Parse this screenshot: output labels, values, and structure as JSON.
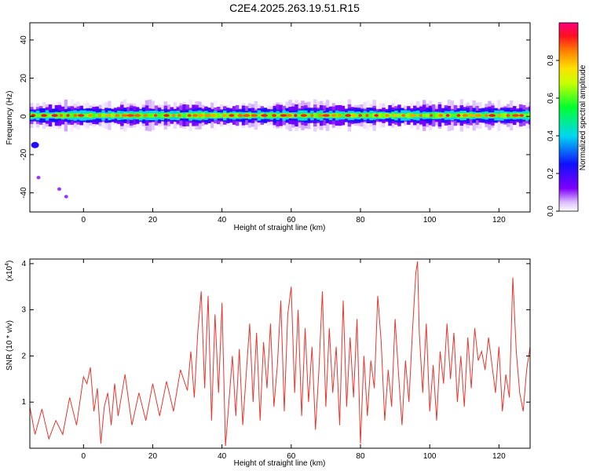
{
  "title": "C2E4.2025.263.19.51.R15",
  "colors": {
    "axis": "#000000",
    "line": "#e8352e",
    "background": "#ffffff"
  },
  "chart_data": [
    {
      "type": "heatmap",
      "xlabel": "Height of straight line (km)",
      "ylabel": "Frequency (Hz)",
      "xlim": [
        -15.5,
        129
      ],
      "ylim": [
        -50,
        49
      ],
      "xticks": [
        0,
        20,
        40,
        60,
        80,
        100,
        120
      ],
      "yticks": [
        40,
        20,
        0,
        -20,
        -40
      ],
      "colorbar": {
        "label": "Normalized spectral amplitude",
        "range": [
          0,
          1
        ],
        "ticks": [
          0.0,
          0.2,
          0.4,
          0.6,
          0.8
        ],
        "tick_labels": [
          "0.0",
          "0.2",
          "0.4",
          "0.6",
          "0.8"
        ],
        "colormap": "rainbow (white-purple-blue-cyan-green-yellow-orange-red-magenta)"
      },
      "band": {
        "center_hz": 0.5,
        "halfwidth_hz": 3,
        "x_range": [
          -15.5,
          129
        ]
      },
      "features": [
        {
          "x": -14,
          "y": -15,
          "value": 0.15,
          "note": "isolated blue blob"
        },
        {
          "x": -13,
          "y": -32,
          "value": 0.02
        },
        {
          "x": -7,
          "y": -38,
          "value": 0.02
        },
        {
          "x": -5,
          "y": -42,
          "value": 0.02
        }
      ]
    },
    {
      "type": "line",
      "xlabel": "Height of straight line (km)",
      "ylabel": "SNR (10 * v/v)",
      "y_multiplier_label": "(x10",
      "y_multiplier_exp": "4",
      "xlim": [
        -15.5,
        129
      ],
      "ylim": [
        0,
        4.1
      ],
      "xticks": [
        0,
        20,
        40,
        60,
        80,
        100,
        120
      ],
      "yticks": [
        1,
        2,
        3,
        4
      ],
      "series": [
        {
          "x": [
            -15.5,
            -14,
            -12,
            -10,
            -8,
            -6,
            -4,
            -2,
            0,
            1,
            2,
            3,
            4,
            5,
            6,
            7,
            8,
            9,
            10,
            12,
            14,
            16,
            18,
            20,
            22,
            24,
            26,
            28,
            30,
            31,
            32,
            33,
            34,
            35,
            36,
            37,
            38,
            39,
            40,
            41,
            42,
            43,
            44,
            45,
            46,
            47,
            48,
            49,
            50,
            51,
            52,
            53,
            54,
            55,
            56,
            57,
            58,
            59,
            60,
            61,
            62,
            63,
            64,
            65,
            66,
            67,
            68,
            69,
            70,
            71,
            72,
            73,
            74,
            75,
            76,
            77,
            78,
            79,
            80,
            81,
            82,
            83,
            84,
            85,
            86,
            87,
            88,
            89,
            90,
            91,
            92,
            93,
            94,
            95,
            96,
            96.5,
            97,
            98,
            99,
            100,
            101,
            102,
            103,
            104,
            105,
            106,
            107,
            108,
            109,
            110,
            111,
            112,
            113,
            114,
            115,
            116,
            117,
            118,
            119,
            120,
            121,
            122,
            123,
            124,
            125,
            126,
            127,
            128,
            129
          ],
          "y": [
            0.9,
            0.3,
            0.85,
            0.2,
            0.6,
            0.3,
            1.1,
            0.5,
            1.55,
            1.4,
            1.75,
            0.8,
            1.3,
            0.1,
            0.9,
            1.2,
            0.5,
            1.4,
            0.7,
            1.6,
            0.5,
            1.2,
            0.6,
            1.4,
            0.7,
            1.45,
            0.8,
            1.7,
            1.25,
            2.1,
            1.1,
            2.5,
            3.4,
            1.3,
            3.3,
            0.6,
            2.9,
            1.2,
            3.15,
            0.05,
            1.0,
            2.0,
            0.7,
            2.15,
            0.5,
            1.6,
            2.7,
            1.0,
            2.5,
            0.6,
            2.3,
            1.3,
            2.7,
            0.9,
            1.8,
            3.2,
            0.8,
            2.9,
            3.5,
            1.2,
            3.0,
            0.7,
            2.6,
            1.0,
            2.2,
            0.4,
            1.7,
            3.4,
            0.9,
            2.6,
            1.2,
            2.2,
            0.5,
            3.2,
            0.9,
            2.4,
            1.1,
            2.8,
            0.1,
            2.0,
            0.7,
            1.9,
            1.3,
            3.3,
            2.3,
            0.6,
            1.7,
            0.9,
            2.8,
            1.6,
            0.5,
            1.9,
            1.0,
            2.5,
            3.8,
            4.05,
            2.5,
            1.2,
            2.7,
            0.8,
            1.8,
            0.6,
            2.1,
            1.4,
            2.7,
            1.5,
            2.5,
            1.0,
            2.0,
            0.9,
            2.4,
            1.3,
            2.6,
            1.9,
            2.1,
            1.7,
            2.4,
            1.8,
            1.2,
            2.2,
            0.8,
            1.6,
            1.1,
            3.7,
            2.1,
            1.2,
            0.8,
            1.7,
            2.2
          ]
        }
      ]
    }
  ]
}
